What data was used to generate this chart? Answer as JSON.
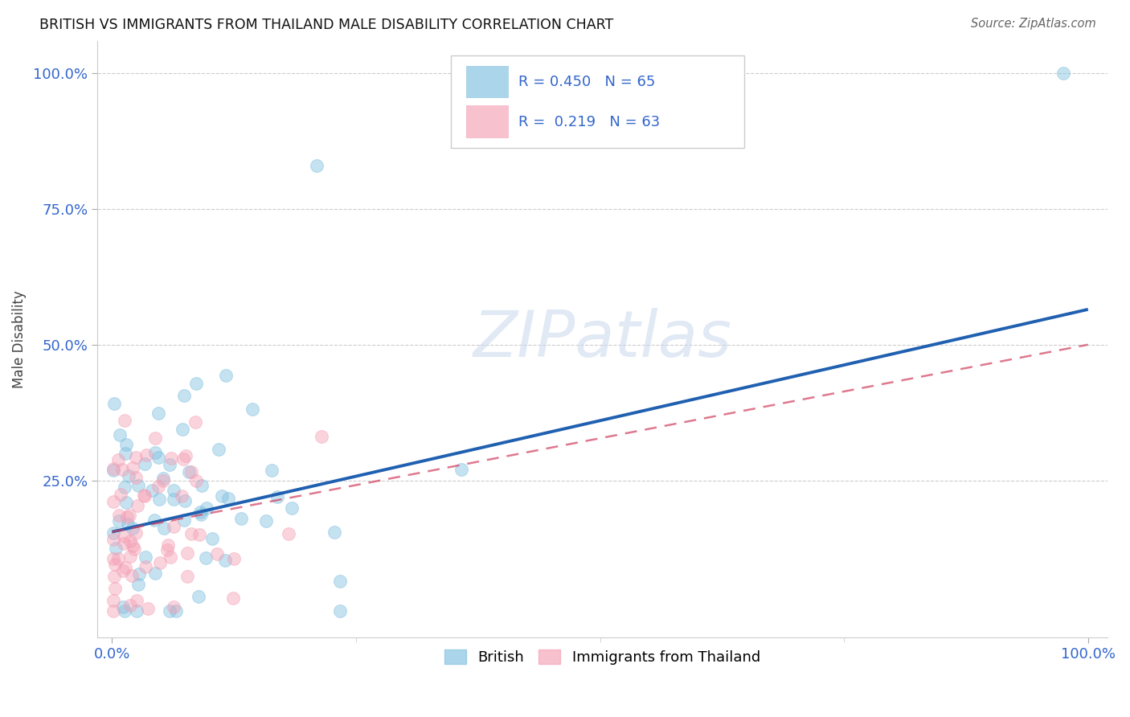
{
  "title": "BRITISH VS IMMIGRANTS FROM THAILAND MALE DISABILITY CORRELATION CHART",
  "source": "Source: ZipAtlas.com",
  "ylabel": "Male Disability",
  "british_R": 0.45,
  "british_N": 65,
  "thailand_R": 0.219,
  "thailand_N": 63,
  "british_color": "#7fbfdf",
  "thailand_color": "#f4a0b5",
  "british_line_color": "#2060b0",
  "thailand_line_color": "#d04060",
  "legend_labels": [
    "British",
    "Immigrants from Thailand"
  ],
  "british_line_x0": 0.0,
  "british_line_y0": 0.155,
  "british_line_x1": 1.0,
  "british_line_y1": 0.565,
  "thailand_line_x0": 0.0,
  "thailand_line_y0": 0.155,
  "thailand_line_x1": 1.0,
  "thailand_line_y1": 0.5,
  "xlim": [
    0,
    1.0
  ],
  "ylim": [
    0,
    1.0
  ],
  "yticks": [
    0.25,
    0.5,
    0.75,
    1.0
  ],
  "xticks": [
    0.0,
    1.0
  ],
  "watermark_text": "ZIPatlas"
}
